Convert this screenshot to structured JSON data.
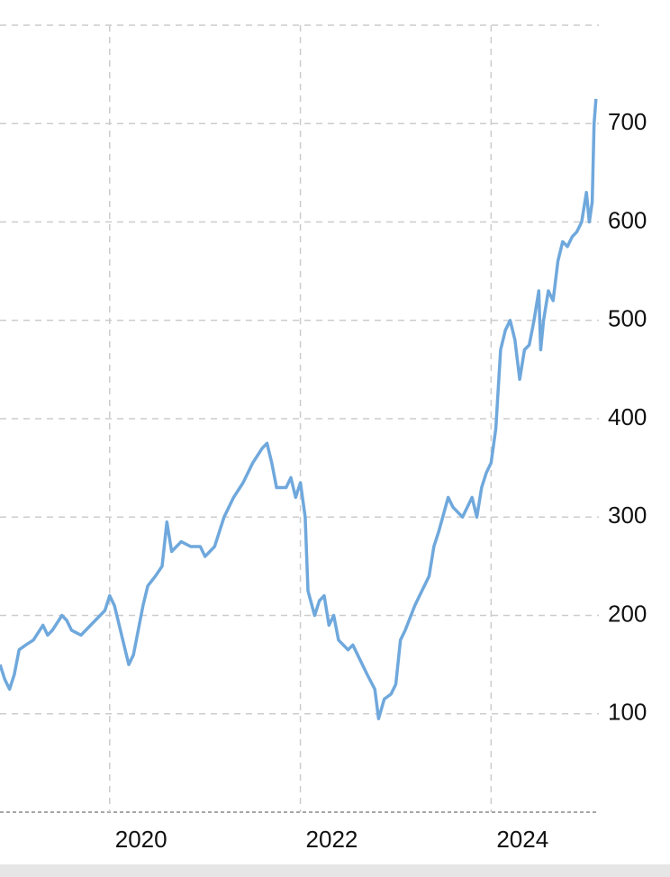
{
  "chart_data": {
    "type": "line",
    "x": [
      2018.85,
      2018.9,
      2018.95,
      2019.0,
      2019.05,
      2019.12,
      2019.2,
      2019.3,
      2019.35,
      2019.4,
      2019.5,
      2019.55,
      2019.6,
      2019.7,
      2019.8,
      2019.9,
      2019.95,
      2020.0,
      2020.05,
      2020.15,
      2020.2,
      2020.25,
      2020.35,
      2020.4,
      2020.48,
      2020.55,
      2020.6,
      2020.65,
      2020.75,
      2020.85,
      2020.95,
      2021.0,
      2021.1,
      2021.2,
      2021.3,
      2021.4,
      2021.5,
      2021.6,
      2021.65,
      2021.7,
      2021.75,
      2021.85,
      2021.9,
      2021.95,
      2022.0,
      2022.05,
      2022.08,
      2022.15,
      2022.2,
      2022.25,
      2022.3,
      2022.35,
      2022.4,
      2022.5,
      2022.55,
      2022.6,
      2022.7,
      2022.78,
      2022.82,
      2022.88,
      2022.95,
      2023.0,
      2023.05,
      2023.1,
      2023.2,
      2023.25,
      2023.35,
      2023.4,
      2023.45,
      2023.55,
      2023.6,
      2023.7,
      2023.8,
      2023.85,
      2023.9,
      2023.95,
      2024.0,
      2024.05,
      2024.1,
      2024.15,
      2024.2,
      2024.25,
      2024.3,
      2024.35,
      2024.4,
      2024.45,
      2024.5,
      2024.52,
      2024.55,
      2024.6,
      2024.65,
      2024.7,
      2024.75,
      2024.8,
      2024.85,
      2024.9,
      2024.95,
      2025.0,
      2025.03,
      2025.06,
      2025.08,
      2025.1
    ],
    "series": [
      {
        "color": "#6fa8dc",
        "values": [
          150,
          135,
          125,
          140,
          165,
          170,
          175,
          190,
          180,
          185,
          200,
          195,
          185,
          180,
          190,
          200,
          205,
          220,
          210,
          170,
          150,
          160,
          210,
          230,
          240,
          250,
          295,
          265,
          275,
          270,
          270,
          260,
          270,
          300,
          320,
          335,
          355,
          370,
          375,
          355,
          330,
          330,
          340,
          320,
          335,
          300,
          225,
          200,
          215,
          220,
          190,
          200,
          175,
          165,
          170,
          160,
          140,
          125,
          95,
          115,
          120,
          130,
          175,
          185,
          210,
          220,
          240,
          270,
          285,
          320,
          310,
          300,
          320,
          300,
          330,
          345,
          355,
          390,
          470,
          490,
          500,
          480,
          440,
          470,
          475,
          500,
          530,
          470,
          500,
          530,
          520,
          560,
          580,
          575,
          585,
          590,
          600,
          630,
          600,
          620,
          700,
          725
        ]
      }
    ],
    "xlim": [
      2018.85,
      2025.13
    ],
    "xticks": [
      2020,
      2022,
      2024
    ],
    "ylim": [
      0,
      800
    ],
    "yticks": [
      100,
      200,
      300,
      400,
      500,
      600,
      700
    ],
    "grid": true
  }
}
